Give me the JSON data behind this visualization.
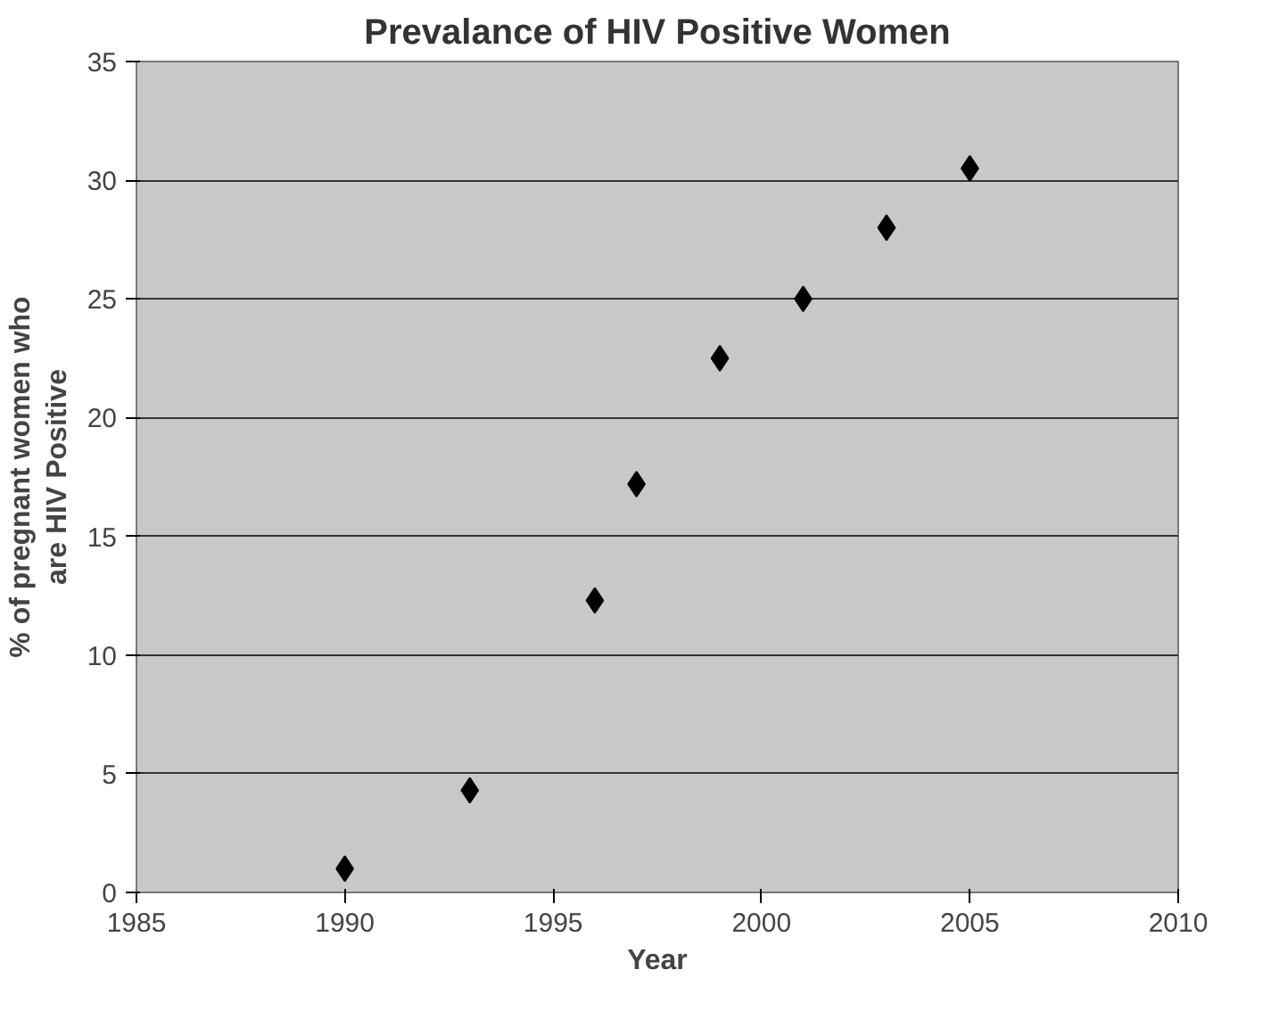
{
  "chart_data": {
    "type": "scatter",
    "title": "Prevalance of HIV Positive Women",
    "xlabel": "Year",
    "ylabel": "% of pregnant women who\nare HIV Positive",
    "x": [
      1990,
      1993,
      1996,
      1997,
      1999,
      2001,
      2003,
      2005
    ],
    "series": [
      {
        "color": "#000000",
        "values": [
          1,
          4.3,
          12.3,
          17.2,
          22.5,
          25,
          28,
          30.5
        ]
      }
    ],
    "xlim": [
      1985,
      2010
    ],
    "xticks": [
      1985,
      1990,
      1995,
      2000,
      2005,
      2010
    ],
    "ylim": [
      0,
      35
    ],
    "yticks": [
      0,
      5,
      10,
      15,
      20,
      25,
      30,
      35
    ],
    "grid": "y",
    "marker": "diamond"
  }
}
